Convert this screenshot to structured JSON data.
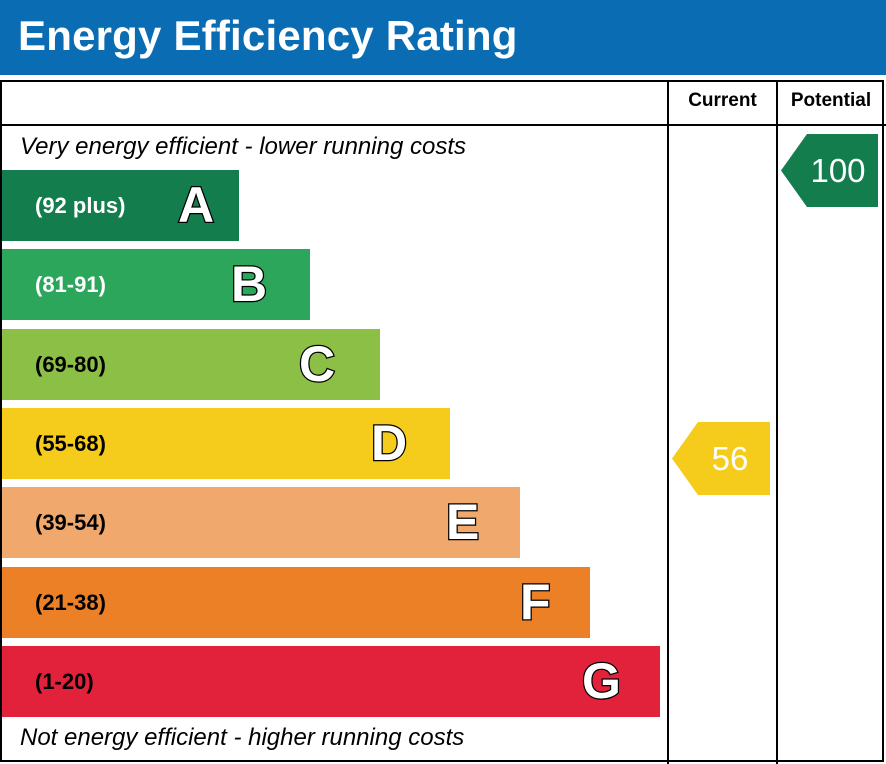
{
  "title": "Energy Efficiency Rating",
  "columns": {
    "current": "Current",
    "potential": "Potential"
  },
  "notes": {
    "top": "Very energy efficient - lower running costs",
    "bottom": "Not energy efficient - higher running costs"
  },
  "chart_data": {
    "type": "bar",
    "title": "Energy Efficiency Rating",
    "bands": [
      {
        "letter": "A",
        "range": "(92 plus)",
        "min": 92,
        "max": 100,
        "color": "#137d4e",
        "text_color": "#ffffff"
      },
      {
        "letter": "B",
        "range": "(81-91)",
        "min": 81,
        "max": 91,
        "color": "#2ba65b",
        "text_color": "#ffffff"
      },
      {
        "letter": "C",
        "range": "(69-80)",
        "min": 69,
        "max": 80,
        "color": "#8cbf45",
        "text_color": "#000000"
      },
      {
        "letter": "D",
        "range": "(55-68)",
        "min": 55,
        "max": 68,
        "color": "#f5cc1b",
        "text_color": "#000000"
      },
      {
        "letter": "E",
        "range": "(39-54)",
        "min": 39,
        "max": 54,
        "color": "#f1a86c",
        "text_color": "#000000"
      },
      {
        "letter": "F",
        "range": "(21-38)",
        "min": 21,
        "max": 38,
        "color": "#ec8026",
        "text_color": "#000000"
      },
      {
        "letter": "G",
        "range": "(1-20)",
        "min": 1,
        "max": 20,
        "color": "#e2223b",
        "text_color": "#000000"
      }
    ],
    "current": {
      "value": 56,
      "band": "D",
      "color": "#f5cc1b"
    },
    "potential": {
      "value": 100,
      "band": "A",
      "color": "#137d4e"
    }
  }
}
